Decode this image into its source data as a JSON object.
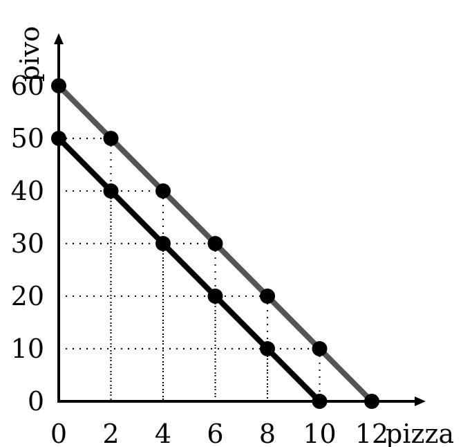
{
  "chart_data": {
    "type": "line",
    "xlabel": "pizza",
    "ylabel": "pivo",
    "xlim": [
      0,
      12
    ],
    "ylim": [
      0,
      60
    ],
    "x_ticks": [
      "0",
      "2",
      "4",
      "6",
      "8",
      "10",
      "12"
    ],
    "y_ticks": [
      "0",
      "10",
      "20",
      "30",
      "40",
      "50",
      "60"
    ],
    "grid": "dotted guides at selected points",
    "series": [
      {
        "color": "#555555",
        "x": [
          0,
          2,
          4,
          6,
          8,
          10,
          12
        ],
        "y": [
          60,
          50,
          40,
          30,
          20,
          10,
          0
        ]
      },
      {
        "color": "#000000",
        "x": [
          0,
          2,
          4,
          6,
          8,
          10
        ],
        "y": [
          50,
          40,
          30,
          20,
          10,
          0
        ]
      }
    ],
    "guides": [
      {
        "x": 2,
        "y": 50
      },
      {
        "x": 2,
        "y": 40
      },
      {
        "x": 4,
        "y": 40
      },
      {
        "x": 4,
        "y": 30
      },
      {
        "x": 6,
        "y": 30
      },
      {
        "x": 6,
        "y": 20
      },
      {
        "x": 8,
        "y": 20
      },
      {
        "x": 8,
        "y": 10
      },
      {
        "x": 10,
        "y": 10
      }
    ]
  }
}
